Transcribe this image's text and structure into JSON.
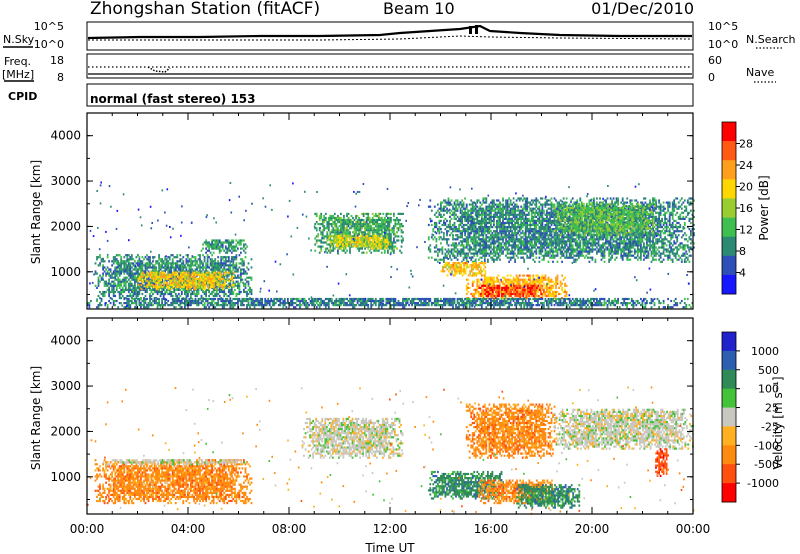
{
  "header": {
    "station": "Zhongshan Station (fitACF)",
    "beam": "Beam 10",
    "date": "01/Dec/2010"
  },
  "strip_panels": {
    "nsky": {
      "label": "N.Sky",
      "ticks": [
        "10^5",
        "10^0"
      ]
    },
    "nsearch": {
      "label": "N.Search",
      "ticks": [
        "10^5",
        "10^0"
      ]
    },
    "freq": {
      "label_line1": "Freq.",
      "label_line2": "[MHz]",
      "ticks": [
        "18",
        "8"
      ]
    },
    "nave": {
      "label": "Nave",
      "ticks": [
        "60",
        "0"
      ]
    },
    "cpid": {
      "label": "CPID",
      "text": "normal (fast stereo) 153"
    }
  },
  "chart_data": [
    {
      "type": "heatmap",
      "name": "power",
      "ylabel": "Slant Range [km]",
      "xlabel": "",
      "ylim": [
        180,
        4500
      ],
      "xlim": [
        0,
        24
      ],
      "yticks": [
        1000,
        2000,
        3000,
        4000
      ],
      "xticks": [
        0,
        4,
        8,
        12,
        16,
        20,
        24
      ],
      "colorbar": {
        "label": "Power [dB]",
        "range": [
          0,
          32
        ],
        "ticks": [
          4,
          8,
          12,
          16,
          20,
          24,
          28
        ],
        "colors": [
          "#1717ff",
          "#2f4fb8",
          "#2c8a73",
          "#3fbf50",
          "#9acd32",
          "#ffd700",
          "#ff9f1c",
          "#ff5a14",
          "#ff0000"
        ]
      },
      "echo_regions": [
        {
          "t": [
            0.3,
            6.5
          ],
          "r": [
            400,
            1350
          ],
          "level": 9
        },
        {
          "t": [
            2.0,
            5.8
          ],
          "r": [
            600,
            1000
          ],
          "level": 20
        },
        {
          "t": [
            4.5,
            6.3
          ],
          "r": [
            1400,
            1700
          ],
          "level": 10
        },
        {
          "t": [
            9.0,
            12.5
          ],
          "r": [
            1400,
            2300
          ],
          "level": 11
        },
        {
          "t": [
            9.5,
            12.0
          ],
          "r": [
            1500,
            1800
          ],
          "level": 18
        },
        {
          "t": [
            13.5,
            24.0
          ],
          "r": [
            1200,
            2600
          ],
          "level": 9
        },
        {
          "t": [
            14.0,
            15.8
          ],
          "r": [
            900,
            1200
          ],
          "level": 21
        },
        {
          "t": [
            15.0,
            19.0
          ],
          "r": [
            400,
            900
          ],
          "level": 22
        },
        {
          "t": [
            15.5,
            18.0
          ],
          "r": [
            400,
            700
          ],
          "level": 28
        },
        {
          "t": [
            18.5,
            22.5
          ],
          "r": [
            1800,
            2500
          ],
          "level": 13
        },
        {
          "t": [
            0.0,
            24.0
          ],
          "r": [
            200,
            420
          ],
          "level": 8
        }
      ]
    },
    {
      "type": "heatmap",
      "name": "velocity",
      "ylabel": "Slant Range [km]",
      "xlabel": "Time UT",
      "ylim": [
        180,
        4500
      ],
      "xlim": [
        0,
        24
      ],
      "yticks": [
        1000,
        2000,
        3000,
        4000
      ],
      "xticks": [
        0,
        4,
        8,
        12,
        16,
        20,
        24
      ],
      "xticklabels": [
        "00:00",
        "04:00",
        "08:00",
        "12:00",
        "16:00",
        "20:00",
        "00:00"
      ],
      "colorbar": {
        "label": "Velocity [m s⁻¹]",
        "ticks": [
          "1000",
          "500",
          "100",
          "25",
          "-25",
          "-100",
          "-500",
          "-1000"
        ],
        "colors": [
          "#2222cc",
          "#2c5fb0",
          "#2f8a58",
          "#44c23a",
          "#c8c8c0",
          "#ffb020",
          "#ff8a10",
          "#ff5010",
          "#ff0000"
        ]
      },
      "echo_regions": [
        {
          "t": [
            0.3,
            6.5
          ],
          "r": [
            400,
            1350
          ],
          "v": "-100"
        },
        {
          "t": [
            0.5,
            6.3
          ],
          "r": [
            1250,
            1350
          ],
          "v": "0"
        },
        {
          "t": [
            8.5,
            12.5
          ],
          "r": [
            1400,
            2300
          ],
          "v": "0"
        },
        {
          "t": [
            13.5,
            16.5
          ],
          "r": [
            500,
            1100
          ],
          "v": "100"
        },
        {
          "t": [
            15.5,
            18.5
          ],
          "r": [
            400,
            900
          ],
          "v": "-100"
        },
        {
          "t": [
            17.0,
            19.5
          ],
          "r": [
            300,
            800
          ],
          "v": "100"
        },
        {
          "t": [
            15.0,
            18.5
          ],
          "r": [
            1400,
            2600
          ],
          "v": "-100"
        },
        {
          "t": [
            18.5,
            24.0
          ],
          "r": [
            1600,
            2500
          ],
          "v": "0"
        },
        {
          "t": [
            22.5,
            23.0
          ],
          "r": [
            1000,
            1600
          ],
          "v": "-500"
        }
      ]
    }
  ]
}
